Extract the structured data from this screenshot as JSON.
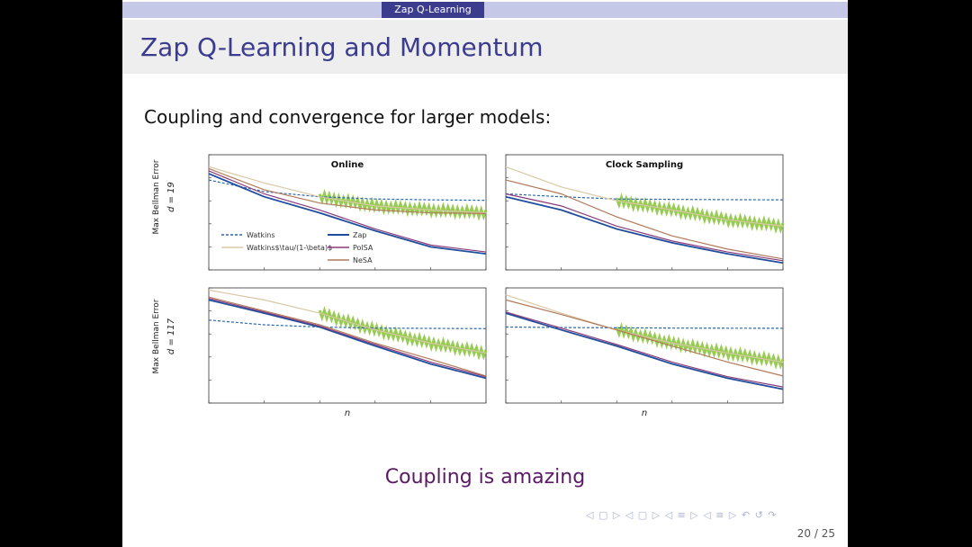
{
  "header": {
    "section": "Zap Q-Learning"
  },
  "slide": {
    "title": "Zap Q-Learning and Momentum",
    "subtitle": "Coupling and convergence for larger models:",
    "tagline": "Coupling is amazing",
    "page_label": "20 / 25"
  },
  "colors": {
    "accent": "#3b3c8e",
    "watkins": "#2a67b0",
    "watkins_scaled": "#d9c8a6",
    "zap": "#1f4e9c",
    "polsa": "#8a3b7a",
    "nesa": "#b07a5a",
    "green_band": "#8cc63f"
  },
  "chart_data": [
    {
      "type": "line",
      "panel": "top-left",
      "title": "Online",
      "ylabel": "Max Bellman Error",
      "row_label": "d = 19",
      "xscale": "log",
      "yscale": "log",
      "legend": {
        "placement": "bottom",
        "entries": [
          "Watkins",
          "Watkins$\\tau/(1-\\beta)$",
          "Zap",
          "PolSA",
          "NeSA"
        ]
      },
      "series": [
        {
          "name": "Watkins",
          "x": [
            1,
            10,
            100,
            1000,
            10000,
            100000
          ],
          "y": [
            800,
            250,
            150,
            120,
            110,
            105
          ]
        },
        {
          "name": "Watkins$\\tau/(1-\\beta)$",
          "x": [
            1,
            10,
            100,
            1000,
            10000,
            100000
          ],
          "y": [
            3000,
            600,
            150,
            60,
            40,
            30
          ]
        },
        {
          "name": "Zap",
          "x": [
            1,
            10,
            100,
            1000,
            10000,
            100000
          ],
          "y": [
            1500,
            150,
            30,
            5,
            1,
            0.5
          ]
        },
        {
          "name": "PolSA",
          "x": [
            1,
            10,
            100,
            1000,
            10000,
            100000
          ],
          "y": [
            2000,
            200,
            40,
            6,
            1.2,
            0.6
          ]
        },
        {
          "name": "NeSA",
          "x": [
            1,
            10,
            100,
            1000,
            10000,
            100000
          ],
          "y": [
            2500,
            300,
            80,
            40,
            30,
            28
          ]
        }
      ]
    },
    {
      "type": "line",
      "panel": "top-right",
      "title": "Clock Sampling",
      "xscale": "log",
      "yscale": "log",
      "series": [
        {
          "name": "Watkins",
          "x": [
            1,
            10,
            100,
            1000,
            10000,
            100000
          ],
          "y": [
            200,
            150,
            120,
            115,
            112,
            110
          ]
        },
        {
          "name": "Watkins$\\tau/(1-\\beta)$",
          "x": [
            1,
            10,
            100,
            1000,
            10000,
            100000
          ],
          "y": [
            3000,
            400,
            100,
            40,
            15,
            8
          ]
        },
        {
          "name": "Zap",
          "x": [
            1,
            10,
            100,
            1000,
            10000,
            100000
          ],
          "y": [
            150,
            40,
            6,
            1.5,
            0.5,
            0.2
          ]
        },
        {
          "name": "PolSA",
          "x": [
            1,
            10,
            100,
            1000,
            10000,
            100000
          ],
          "y": [
            200,
            60,
            8,
            1.8,
            0.6,
            0.25
          ]
        },
        {
          "name": "NeSA",
          "x": [
            1,
            10,
            100,
            1000,
            10000,
            100000
          ],
          "y": [
            800,
            200,
            20,
            3,
            0.8,
            0.3
          ]
        }
      ]
    },
    {
      "type": "line",
      "panel": "bottom-left",
      "ylabel": "Max Bellman Error",
      "row_label": "d = 117",
      "xlabel": "n",
      "xscale": "log",
      "yscale": "log",
      "series": [
        {
          "name": "Watkins",
          "x": [
            1,
            10,
            100,
            1000,
            10000,
            100000
          ],
          "y": [
            400,
            250,
            200,
            180,
            175,
            170
          ]
        },
        {
          "name": "Watkins$\\tau/(1-\\beta)$",
          "x": [
            1,
            10,
            100,
            1000,
            10000,
            100000
          ],
          "y": [
            8000,
            3000,
            800,
            150,
            40,
            15
          ]
        },
        {
          "name": "Zap",
          "x": [
            1,
            10,
            100,
            1000,
            10000,
            100000
          ],
          "y": [
            3000,
            800,
            200,
            30,
            5,
            1.2
          ]
        },
        {
          "name": "PolSA",
          "x": [
            1,
            10,
            100,
            1000,
            10000,
            100000
          ],
          "y": [
            3500,
            900,
            220,
            35,
            6,
            1.4
          ]
        },
        {
          "name": "NeSA",
          "x": [
            1,
            10,
            100,
            1000,
            10000,
            100000
          ],
          "y": [
            4000,
            1000,
            250,
            40,
            8,
            1.5
          ]
        }
      ]
    },
    {
      "type": "line",
      "panel": "bottom-right",
      "xlabel": "n",
      "xscale": "log",
      "yscale": "log",
      "series": [
        {
          "name": "Watkins",
          "x": [
            1,
            10,
            100,
            1000,
            10000,
            100000
          ],
          "y": [
            200,
            190,
            185,
            180,
            178,
            176
          ]
        },
        {
          "name": "Watkins$\\tau/(1-\\beta)$",
          "x": [
            1,
            10,
            100,
            1000,
            10000,
            100000
          ],
          "y": [
            5000,
            800,
            150,
            40,
            15,
            6
          ]
        },
        {
          "name": "Zap",
          "x": [
            1,
            10,
            100,
            1000,
            10000,
            100000
          ],
          "y": [
            800,
            150,
            30,
            5,
            1.2,
            0.4
          ]
        },
        {
          "name": "PolSA",
          "x": [
            1,
            10,
            100,
            1000,
            10000,
            100000
          ],
          "y": [
            900,
            180,
            35,
            6,
            1.4,
            0.5
          ]
        },
        {
          "name": "NeSA",
          "x": [
            1,
            10,
            100,
            1000,
            10000,
            100000
          ],
          "y": [
            3000,
            700,
            150,
            30,
            6,
            1.5
          ]
        }
      ]
    }
  ]
}
